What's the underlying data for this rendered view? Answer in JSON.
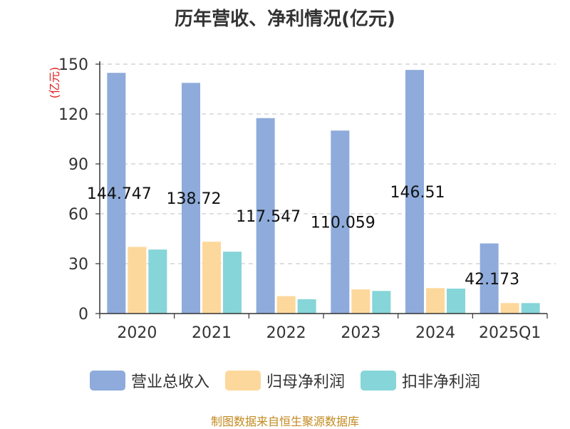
{
  "chart_data": {
    "type": "bar",
    "title": "历年营收、净利情况(亿元)",
    "ylabel": "(亿元)",
    "ylim": [
      0,
      150
    ],
    "yticks": [
      0,
      30,
      60,
      90,
      120,
      150
    ],
    "grid": true,
    "legend_position": "bottom",
    "categories": [
      "2020",
      "2021",
      "2022",
      "2023",
      "2024",
      "2025Q1"
    ],
    "series": [
      {
        "name": "营业总收入",
        "color": "#8eabdb",
        "values": [
          144.747,
          138.72,
          117.547,
          110.059,
          146.51,
          42.173
        ],
        "labels": [
          "144.747",
          "138.72",
          "117.547",
          "110.059",
          "146.51",
          "42.173"
        ]
      },
      {
        "name": "归母净利润",
        "color": "#fdd89c",
        "values": [
          40.1,
          43.2,
          10.5,
          14.5,
          15.3,
          6.3
        ]
      },
      {
        "name": "扣非净利润",
        "color": "#86d5d8",
        "values": [
          38.5,
          37.2,
          8.6,
          13.6,
          15.0,
          6.3
        ]
      }
    ]
  },
  "source_text": "制图数据来自恒生聚源数据库",
  "colors": {
    "title": "#333333",
    "ylabel": "#e02020",
    "source": "#c28a1e",
    "grid": "#cccccc"
  }
}
